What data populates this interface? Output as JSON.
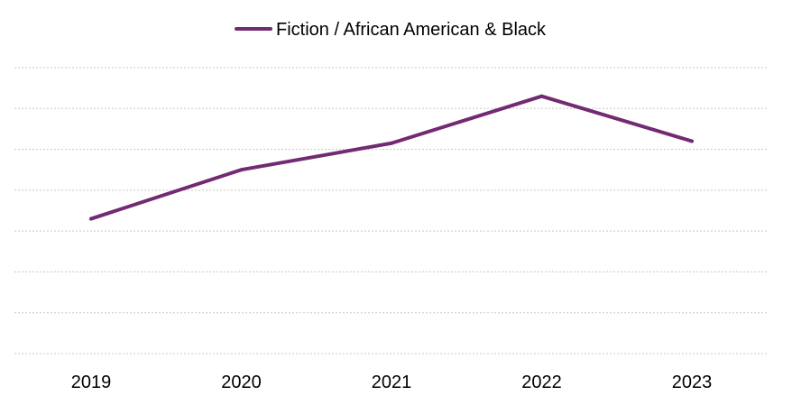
{
  "chart_data": {
    "type": "line",
    "title": "",
    "xlabel": "",
    "ylabel": "",
    "categories": [
      "2019",
      "2020",
      "2021",
      "2022",
      "2023"
    ],
    "series": [
      {
        "name": "Fiction / African American & Black",
        "values": [
          3.3,
          4.5,
          5.15,
          6.3,
          5.2
        ],
        "color": "#722B72"
      }
    ],
    "ylim": [
      0,
      7
    ],
    "y_gridlines": [
      0,
      1,
      2,
      3,
      4,
      5,
      6,
      7
    ],
    "y_tick_labels_shown": false,
    "grid": true,
    "grid_color": "#C8C8C8",
    "grid_style": "dotted",
    "legend_position": "top-center"
  }
}
